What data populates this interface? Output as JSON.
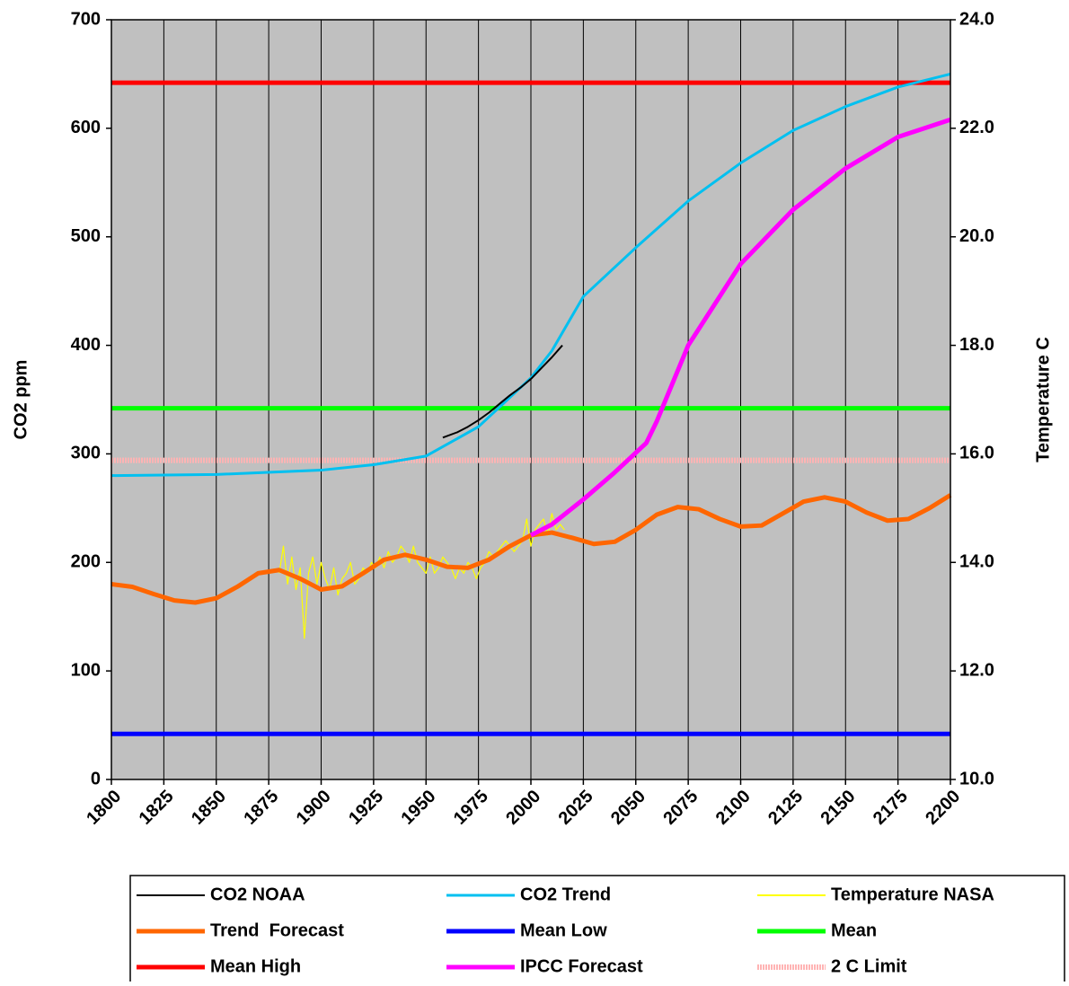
{
  "chart_data": {
    "type": "line",
    "ylabel": "CO2 ppm",
    "y2label": "Temperature C",
    "xlim": [
      1800,
      2200
    ],
    "xticks": [
      1800,
      1825,
      1850,
      1875,
      1900,
      1925,
      1950,
      1975,
      2000,
      2025,
      2050,
      2075,
      2100,
      2125,
      2150,
      2175,
      2200
    ],
    "ylim": [
      0,
      700
    ],
    "yticks": [
      0,
      100,
      200,
      300,
      400,
      500,
      600,
      700
    ],
    "y2lim": [
      10,
      24
    ],
    "y2ticks": [
      {
        "value": 10,
        "label": "10.0"
      },
      {
        "value": 12,
        "label": "12.0"
      },
      {
        "value": 14,
        "label": "14.0"
      },
      {
        "value": 16,
        "label": "16.0"
      },
      {
        "value": 18,
        "label": "18.0"
      },
      {
        "value": 20,
        "label": "20.0"
      },
      {
        "value": 22,
        "label": "22.0"
      },
      {
        "value": 24,
        "label": "24.0"
      }
    ],
    "grid": "x",
    "background": "#c0c0c0",
    "series": [
      {
        "name": "CO2 NOAA",
        "color": "#000000",
        "x": [
          1958,
          1965,
          1970,
          1975,
          1980,
          1985,
          1990,
          1995,
          2000,
          2005,
          2010,
          2015
        ],
        "values": [
          315,
          320,
          325,
          331,
          338,
          346,
          354,
          361,
          369,
          379,
          389,
          400
        ]
      },
      {
        "name": "CO2 Trend",
        "color": "#00c0f0",
        "x": [
          1800,
          1850,
          1900,
          1925,
          1950,
          1975,
          2000,
          2010,
          2025,
          2050,
          2075,
          2100,
          2125,
          2150,
          2175,
          2200
        ],
        "values": [
          280,
          281,
          285,
          290,
          298,
          325,
          370,
          395,
          445,
          490,
          533,
          568,
          598,
          620,
          638,
          650
        ]
      },
      {
        "name": "Temperature NASA",
        "color": "#ffff00",
        "axis": "y2",
        "x": [
          1880,
          1882,
          1884,
          1886,
          1888,
          1890,
          1892,
          1894,
          1896,
          1898,
          1900,
          1902,
          1904,
          1906,
          1908,
          1910,
          1912,
          1914,
          1916,
          1918,
          1920,
          1922,
          1924,
          1926,
          1928,
          1930,
          1932,
          1934,
          1936,
          1938,
          1940,
          1942,
          1944,
          1946,
          1948,
          1950,
          1952,
          1954,
          1956,
          1958,
          1960,
          1962,
          1964,
          1966,
          1968,
          1970,
          1972,
          1974,
          1976,
          1978,
          1980,
          1982,
          1984,
          1986,
          1988,
          1990,
          1992,
          1994,
          1996,
          1998,
          2000,
          2002,
          2004,
          2006,
          2008,
          2010,
          2012,
          2014,
          2016
        ],
        "values": [
          13.8,
          14.3,
          13.6,
          14.1,
          13.5,
          13.9,
          12.6,
          13.8,
          14.1,
          13.6,
          14.0,
          13.7,
          13.5,
          13.9,
          13.4,
          13.7,
          13.8,
          14.0,
          13.6,
          13.7,
          13.9,
          13.8,
          14.0,
          13.9,
          14.1,
          13.9,
          14.2,
          14.0,
          14.1,
          14.3,
          14.2,
          14.0,
          14.3,
          14.0,
          13.9,
          13.8,
          14.1,
          13.8,
          13.9,
          14.1,
          14.0,
          13.9,
          13.7,
          13.9,
          13.8,
          14.0,
          13.9,
          13.7,
          13.9,
          14.0,
          14.2,
          14.1,
          14.2,
          14.3,
          14.4,
          14.3,
          14.2,
          14.3,
          14.4,
          14.8,
          14.3,
          14.6,
          14.7,
          14.8,
          14.5,
          14.9,
          14.6,
          14.7,
          14.6
        ]
      },
      {
        "name": "Trend  Forecast",
        "color": "#ff6600",
        "axis": "y2",
        "x": [
          1800,
          1810,
          1820,
          1830,
          1840,
          1850,
          1860,
          1870,
          1880,
          1890,
          1900,
          1910,
          1920,
          1930,
          1940,
          1950,
          1960,
          1970,
          1980,
          1990,
          2000,
          2010,
          2020,
          2030,
          2040,
          2050,
          2060,
          2070,
          2080,
          2090,
          2100,
          2110,
          2120,
          2130,
          2140,
          2150,
          2160,
          2170,
          2180,
          2190,
          2200
        ],
        "values": [
          13.6,
          13.55,
          13.42,
          13.3,
          13.26,
          13.34,
          13.55,
          13.8,
          13.86,
          13.7,
          13.5,
          13.56,
          13.8,
          14.05,
          14.14,
          14.05,
          13.92,
          13.9,
          14.05,
          14.3,
          14.5,
          14.55,
          14.45,
          14.34,
          14.38,
          14.6,
          14.88,
          15.02,
          14.98,
          14.8,
          14.66,
          14.68,
          14.9,
          15.12,
          15.2,
          15.12,
          14.92,
          14.77,
          14.8,
          15.0,
          15.24
        ]
      },
      {
        "name": "Mean Low",
        "color": "#0000ff",
        "axis": "y2",
        "x": [
          1800,
          2200
        ],
        "values": [
          10.84,
          10.84
        ]
      },
      {
        "name": "Mean",
        "color": "#00ff00",
        "axis": "y2",
        "x": [
          1800,
          2200
        ],
        "values": [
          16.84,
          16.84
        ]
      },
      {
        "name": "Mean High",
        "color": "#ff0000",
        "axis": "y2",
        "x": [
          1800,
          2200
        ],
        "values": [
          22.84,
          22.84
        ]
      },
      {
        "name": "IPCC Forecast",
        "color": "#ff00ff",
        "axis": "y2",
        "x": [
          2000,
          2010,
          2025,
          2040,
          2055,
          2060,
          2075,
          2100,
          2125,
          2150,
          2175,
          2200
        ],
        "values": [
          14.5,
          14.7,
          15.16,
          15.66,
          16.2,
          16.6,
          18.0,
          19.5,
          20.5,
          21.26,
          21.84,
          22.16
        ]
      },
      {
        "name": "2 C Limit",
        "color": "#ffb4b4",
        "axis": "y2",
        "x": [
          1800,
          2200
        ],
        "values": [
          15.88,
          15.88
        ]
      }
    ]
  }
}
